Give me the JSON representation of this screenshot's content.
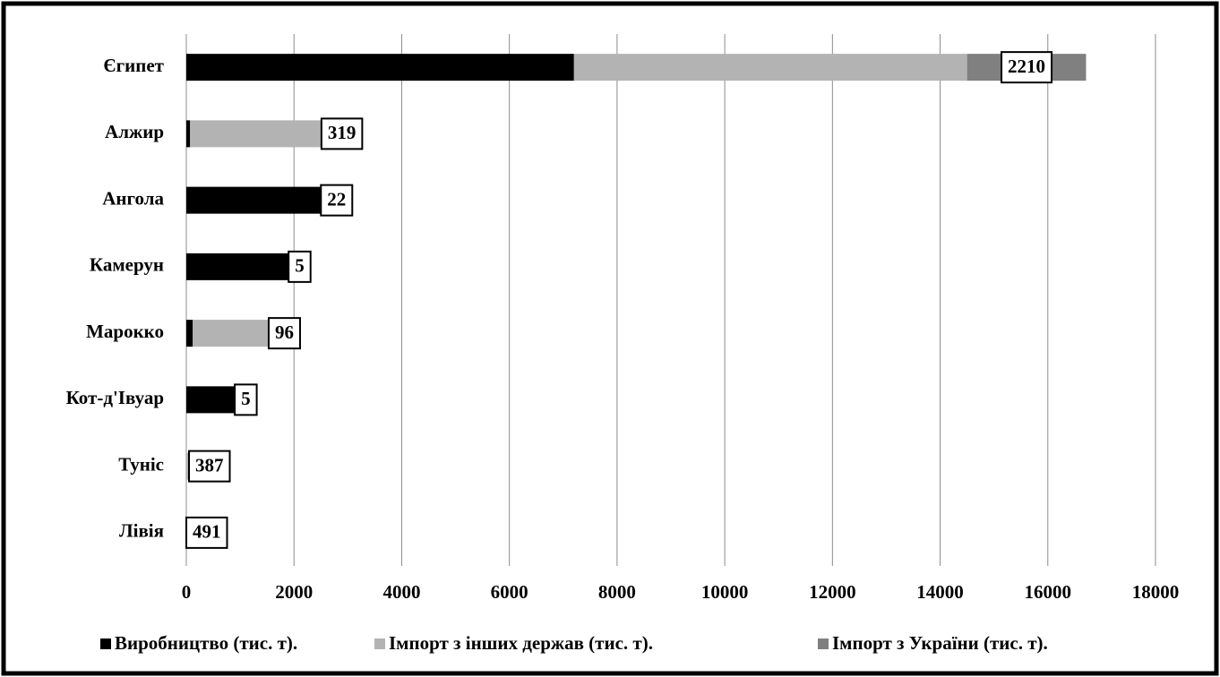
{
  "chart_data": {
    "type": "stacked-barh",
    "categories": [
      "Єгипет",
      "Алжир",
      "Ангола",
      "Камерун",
      "Марокко",
      "Кот-д'Івуар",
      "Туніс",
      "Лівія"
    ],
    "series": [
      {
        "name": "Виробництво (тис. т).",
        "color": "#000000",
        "values": [
          7200,
          70,
          2500,
          1900,
          120,
          900,
          0,
          0
        ]
      },
      {
        "name": "Імпорт з інших держав (тис. т).",
        "color": "#b3b3b3",
        "values": [
          7300,
          2440,
          0,
          0,
          1410,
          0,
          50,
          0
        ]
      },
      {
        "name": "Імпорт з України (тис. т).",
        "color": "#808080",
        "values": [
          2210,
          319,
          22,
          5,
          96,
          5,
          387,
          491
        ]
      }
    ],
    "xlim": [
      0,
      18000
    ],
    "xticks": [
      0,
      2000,
      4000,
      6000,
      8000,
      10000,
      12000,
      14000,
      16000,
      18000
    ],
    "grid": true,
    "legend": "bottom"
  }
}
